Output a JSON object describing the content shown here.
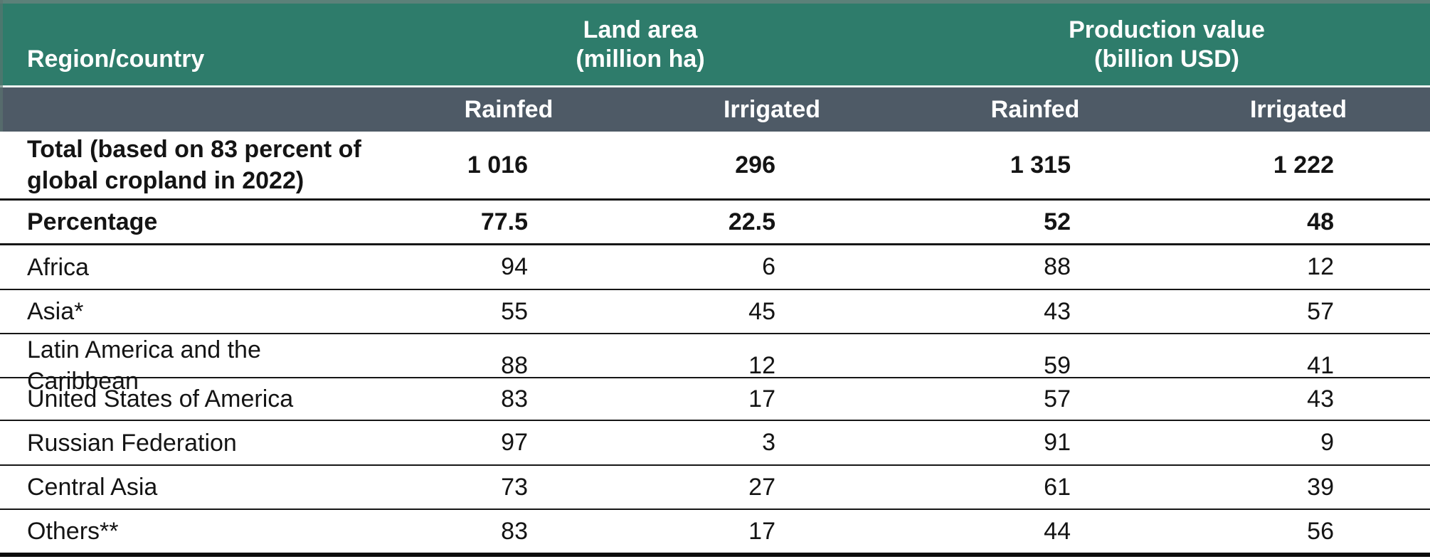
{
  "table": {
    "header": {
      "region_country": "Region/country",
      "land_area": {
        "title": "Land area",
        "unit": "(million ha)"
      },
      "production_value": {
        "title": "Production value",
        "unit": "(billion USD)"
      },
      "sub": [
        "Rainfed",
        "Irrigated",
        "Rainfed",
        "Irrigated"
      ]
    },
    "rows": [
      {
        "label": "Total (based on 83 percent of global cropland in 2022)",
        "label_line1": "Total (based on 83 percent of",
        "label_line2": "global cropland in 2022)",
        "values": [
          "1 016",
          "296",
          "1 315",
          "1 222"
        ]
      },
      {
        "label": "Percentage",
        "values": [
          "77.5",
          "22.5",
          "52",
          "48"
        ]
      },
      {
        "label": "Africa",
        "values": [
          "94",
          "6",
          "88",
          "12"
        ]
      },
      {
        "label": "Asia*",
        "values": [
          "55",
          "45",
          "43",
          "57"
        ]
      },
      {
        "label": "Latin America and the Caribbean",
        "values": [
          "88",
          "12",
          "59",
          "41"
        ]
      },
      {
        "label": "United States of America",
        "values": [
          "83",
          "17",
          "57",
          "43"
        ]
      },
      {
        "label": "Russian Federation",
        "values": [
          "97",
          "3",
          "91",
          "9"
        ]
      },
      {
        "label": "Central Asia",
        "values": [
          "73",
          "27",
          "61",
          "39"
        ]
      },
      {
        "label": "Others**",
        "values": [
          "83",
          "17",
          "44",
          "56"
        ]
      }
    ],
    "colors": {
      "header_teal": "#2E7C6B",
      "header_slate": "#4E5A66",
      "row_border": "#161616",
      "bottom_border": "#0B0B0B"
    }
  }
}
